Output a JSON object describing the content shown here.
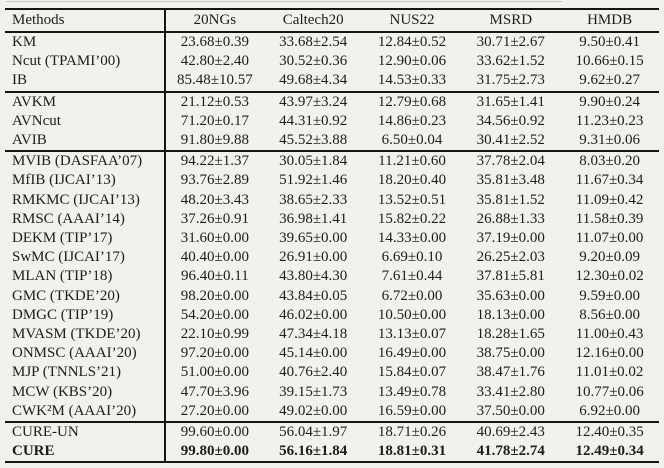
{
  "meta": {
    "background_color": "#f2f1ed",
    "text_color": "#1c1c1c",
    "rule_color": "#151515"
  },
  "table": {
    "columns": [
      "Methods",
      "20NGs",
      "Caltech20",
      "NUS22",
      "MSRD",
      "HMDB"
    ],
    "groups": [
      {
        "rows": [
          {
            "method": "KM",
            "bold": false,
            "values": [
              "23.68±0.39",
              "33.68±2.54",
              "12.84±0.52",
              "30.71±2.67",
              "9.50±0.41"
            ]
          },
          {
            "method": "Ncut (TPAMI’00)",
            "bold": false,
            "values": [
              "42.80±2.40",
              "30.52±0.36",
              "12.90±0.06",
              "33.62±1.52",
              "10.66±0.15"
            ]
          },
          {
            "method": "IB",
            "bold": false,
            "values": [
              "85.48±10.57",
              "49.68±4.34",
              "14.53±0.33",
              "31.75±2.73",
              "9.62±0.27"
            ]
          }
        ]
      },
      {
        "rows": [
          {
            "method": "AVKM",
            "bold": false,
            "values": [
              "21.12±0.53",
              "43.97±3.24",
              "12.79±0.68",
              "31.65±1.41",
              "9.90±0.24"
            ]
          },
          {
            "method": "AVNcut",
            "bold": false,
            "values": [
              "71.20±0.17",
              "44.31±0.92",
              "14.86±0.23",
              "34.56±0.92",
              "11.23±0.23"
            ]
          },
          {
            "method": "AVIB",
            "bold": false,
            "values": [
              "91.80±9.88",
              "45.52±3.88",
              "6.50±0.04",
              "30.41±2.52",
              "9.31±0.06"
            ]
          }
        ]
      },
      {
        "rows": [
          {
            "method": "MVIB (DASFAA’07)",
            "bold": false,
            "values": [
              "94.22±1.37",
              "30.05±1.84",
              "11.21±0.60",
              "37.78±2.04",
              "8.03±0.20"
            ]
          },
          {
            "method": "MfIB (IJCAI’13)",
            "bold": false,
            "values": [
              "93.76±2.89",
              "51.92±1.46",
              "18.20±0.40",
              "35.81±3.48",
              "11.67±0.34"
            ]
          },
          {
            "method": "RMKMC (IJCAI’13)",
            "bold": false,
            "values": [
              "48.20±3.43",
              "38.65±2.33",
              "13.52±0.51",
              "35.81±1.52",
              "11.09±0.42"
            ]
          },
          {
            "method": "RMSC (AAAI’14)",
            "bold": false,
            "values": [
              "37.26±0.91",
              "36.98±1.41",
              "15.82±0.22",
              "26.88±1.33",
              "11.58±0.39"
            ]
          },
          {
            "method": "DEKM (TIP’17)",
            "bold": false,
            "values": [
              "31.60±0.00",
              "39.65±0.00",
              "14.33±0.00",
              "37.19±0.00",
              "11.07±0.00"
            ]
          },
          {
            "method": "SwMC (IJCAI’17)",
            "bold": false,
            "values": [
              "40.40±0.00",
              "26.91±0.00",
              "6.69±0.10",
              "26.25±2.03",
              "9.20±0.09"
            ]
          },
          {
            "method": "MLAN (TIP’18)",
            "bold": false,
            "values": [
              "96.40±0.11",
              "43.80±4.30",
              "7.61±0.44",
              "37.81±5.81",
              "12.30±0.02"
            ]
          },
          {
            "method": "GMC (TKDE’20)",
            "bold": false,
            "values": [
              "98.20±0.00",
              "43.84±0.05",
              "6.72±0.00",
              "35.63±0.00",
              "9.59±0.00"
            ]
          },
          {
            "method": "DMGC (TIP’19)",
            "bold": false,
            "values": [
              "54.20±0.00",
              "46.02±0.00",
              "10.50±0.00",
              "18.13±0.00",
              "8.56±0.00"
            ]
          },
          {
            "method": "MVASM (TKDE’20)",
            "bold": false,
            "values": [
              "22.10±0.99",
              "47.34±4.18",
              "13.13±0.07",
              "18.28±1.65",
              "11.00±0.43"
            ]
          },
          {
            "method": "ONMSC (AAAI’20)",
            "bold": false,
            "values": [
              "97.20±0.00",
              "45.14±0.00",
              "16.49±0.00",
              "38.75±0.00",
              "12.16±0.00"
            ]
          },
          {
            "method": "MJP (TNNLS’21)",
            "bold": false,
            "values": [
              "51.00±0.00",
              "40.76±2.40",
              "15.84±0.07",
              "38.47±1.76",
              "11.01±0.02"
            ]
          },
          {
            "method": "MCW (KBS’20)",
            "bold": false,
            "values": [
              "47.70±3.96",
              "39.15±1.73",
              "13.49±0.78",
              "33.41±2.80",
              "10.77±0.06"
            ]
          },
          {
            "method": "CWK²M (AAAI’20)",
            "bold": false,
            "values": [
              "27.20±0.00",
              "49.02±0.00",
              "16.59±0.00",
              "37.50±0.00",
              "6.92±0.00"
            ]
          }
        ]
      },
      {
        "rows": [
          {
            "method": "CURE-UN",
            "bold": false,
            "values": [
              "99.60±0.00",
              "56.04±1.97",
              "18.71±0.26",
              "40.69±2.43",
              "12.40±0.35"
            ]
          },
          {
            "method": "CURE",
            "bold": true,
            "values": [
              "99.80±0.00",
              "56.16±1.84",
              "18.81±0.31",
              "41.78±2.74",
              "12.49±0.34"
            ]
          }
        ]
      }
    ]
  }
}
